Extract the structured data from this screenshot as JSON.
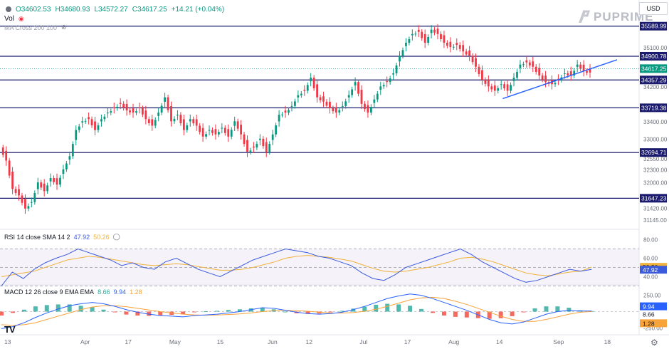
{
  "header": {
    "symbol_icon": "gray-circle-icon",
    "open": "O34602.53",
    "high": "H34680.93",
    "low": "L34572.27",
    "close": "C34617.25",
    "change": "+14.21 (+0.04%)",
    "vol_label": "Vol",
    "ma_label": "MA Cross 200 100",
    "currency": "USD"
  },
  "brand": {
    "name": "PUPRIME"
  },
  "rsi_legend": {
    "label": "RSI 14 close SMA 14 2",
    "rsi": "47.92",
    "sma": "50.26"
  },
  "macd_legend": {
    "label": "MACD 12 26 close 9 EMA EMA",
    "hist": "8.66",
    "macd": "9.94",
    "signal": "1.28"
  },
  "colors": {
    "up": "#089981",
    "down": "#f23645",
    "level": "#1a1a6e",
    "trend": "#2962ff",
    "rsi": "#3b5bdb",
    "rsi_sma": "#f0b23a",
    "macd": "#2962ff",
    "signal": "#f7a33a"
  },
  "chart_data": {
    "type": "candlestick",
    "price_axis_ticks": [
      "35100.00",
      "34200.00",
      "33400.00",
      "33000.00",
      "32550.00",
      "32300.00",
      "32000.00",
      "31420.00",
      "31145.00"
    ],
    "levels": [
      {
        "label": "35589.99",
        "value": 35589.99
      },
      {
        "label": "34900.78",
        "value": 34900.78
      },
      {
        "label": "34357.29",
        "value": 34357.29
      },
      {
        "label": "33719.38",
        "value": 33719.38
      },
      {
        "label": "32694.71",
        "value": 32694.71
      },
      {
        "label": "31647.23",
        "value": 31647.23
      }
    ],
    "last_price": {
      "label": "34617.25",
      "value": 34617.25
    },
    "trendline": {
      "from": {
        "x": 158,
        "y": 33930
      },
      "to": {
        "x": 194,
        "y": 34820
      }
    },
    "x_axis_labels": [
      {
        "label": "13",
        "x": 0
      },
      {
        "label": "Apr",
        "x": 24
      },
      {
        "label": "17",
        "x": 38
      },
      {
        "label": "May",
        "x": 52
      },
      {
        "label": "15",
        "x": 67
      },
      {
        "label": "Jun",
        "x": 83
      },
      {
        "label": "12",
        "x": 95
      },
      {
        "label": "Jul",
        "x": 112
      },
      {
        "label": "17",
        "x": 126
      },
      {
        "label": "Aug",
        "x": 140
      },
      {
        "label": "14",
        "x": 155
      },
      {
        "label": "Sep",
        "x": 173
      },
      {
        "label": "18",
        "x": 189
      }
    ],
    "close_path": [
      [
        0,
        32900
      ],
      [
        2,
        32600
      ],
      [
        4,
        31950
      ],
      [
        6,
        31800
      ],
      [
        8,
        31500
      ],
      [
        10,
        31650
      ],
      [
        12,
        32100
      ],
      [
        14,
        31900
      ],
      [
        16,
        32200
      ],
      [
        18,
        32050
      ],
      [
        20,
        32400
      ],
      [
        22,
        32700
      ],
      [
        24,
        33300
      ],
      [
        26,
        33500
      ],
      [
        28,
        33550
      ],
      [
        30,
        33300
      ],
      [
        32,
        33550
      ],
      [
        34,
        33700
      ],
      [
        36,
        33800
      ],
      [
        38,
        33900
      ],
      [
        40,
        33750
      ],
      [
        42,
        33700
      ],
      [
        44,
        33800
      ],
      [
        46,
        33550
      ],
      [
        48,
        33400
      ],
      [
        50,
        33700
      ],
      [
        52,
        34050
      ],
      [
        54,
        33500
      ],
      [
        56,
        33650
      ],
      [
        58,
        33300
      ],
      [
        60,
        33550
      ],
      [
        62,
        33400
      ],
      [
        64,
        33150
      ],
      [
        66,
        33300
      ],
      [
        68,
        33200
      ],
      [
        70,
        33350
      ],
      [
        72,
        33150
      ],
      [
        74,
        33500
      ],
      [
        76,
        33200
      ],
      [
        78,
        32800
      ],
      [
        80,
        32900
      ],
      [
        82,
        33100
      ],
      [
        84,
        32800
      ],
      [
        86,
        33200
      ],
      [
        88,
        33650
      ],
      [
        90,
        33700
      ],
      [
        92,
        33850
      ],
      [
        94,
        34100
      ],
      [
        96,
        34200
      ],
      [
        98,
        34500
      ],
      [
        100,
        34050
      ],
      [
        102,
        33950
      ],
      [
        104,
        33800
      ],
      [
        106,
        33700
      ],
      [
        108,
        33850
      ],
      [
        110,
        34100
      ],
      [
        112,
        34400
      ],
      [
        114,
        33900
      ],
      [
        116,
        33700
      ],
      [
        118,
        34000
      ],
      [
        120,
        34300
      ],
      [
        122,
        34400
      ],
      [
        124,
        34600
      ],
      [
        126,
        35000
      ],
      [
        128,
        35300
      ],
      [
        130,
        35500
      ],
      [
        132,
        35550
      ],
      [
        134,
        35300
      ],
      [
        136,
        35600
      ],
      [
        138,
        35500
      ],
      [
        140,
        35300
      ],
      [
        142,
        35200
      ],
      [
        144,
        35250
      ],
      [
        146,
        35100
      ],
      [
        148,
        35000
      ],
      [
        150,
        34750
      ],
      [
        152,
        34450
      ],
      [
        154,
        34300
      ],
      [
        156,
        34200
      ],
      [
        158,
        34350
      ],
      [
        160,
        34200
      ],
      [
        162,
        34500
      ],
      [
        164,
        34800
      ],
      [
        166,
        34850
      ],
      [
        168,
        34750
      ],
      [
        170,
        34550
      ],
      [
        172,
        34400
      ],
      [
        174,
        34350
      ],
      [
        176,
        34450
      ],
      [
        178,
        34600
      ],
      [
        180,
        34550
      ],
      [
        182,
        34800
      ],
      [
        184,
        34650
      ],
      [
        186,
        34617
      ]
    ],
    "rsi": {
      "axis": [
        "80.00",
        "60.00",
        "40.00"
      ],
      "last": 47.92,
      "sma_last": 50.26
    },
    "macd": {
      "axis": [
        "250.00",
        "-250.00"
      ],
      "macd_last": 9.94,
      "signal_last": 1.28,
      "hist_last": 8.66
    }
  }
}
